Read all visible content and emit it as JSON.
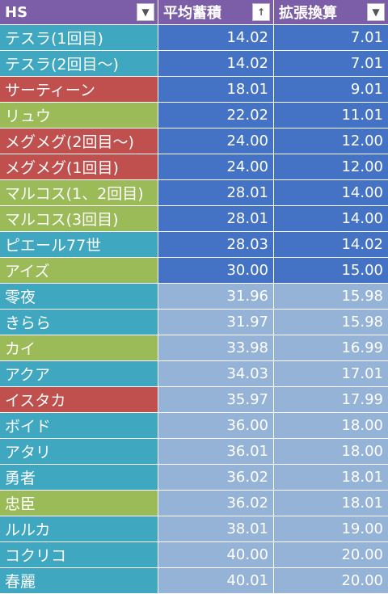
{
  "colors": {
    "header": "#7b5ea7",
    "name_blue": "#3fa7bf",
    "name_red": "#c0504d",
    "name_green": "#9bbb59",
    "value_dark": "#4472c4",
    "value_light": "#95b3d7"
  },
  "header": {
    "col1": "HS",
    "col2": "平均蓄積",
    "col3": "拡張換算",
    "col1_icon": "dropdown-arrow-icon",
    "col2_icon": "sort-ascending-icon",
    "col3_icon": "dropdown-arrow-icon"
  },
  "rows": [
    {
      "name": "テスラ(1回目)",
      "avg": "14.02",
      "ext": "7.01",
      "name_color": "blue",
      "value_shade": "dark"
    },
    {
      "name": "テスラ(2回目～)",
      "avg": "14.02",
      "ext": "7.01",
      "name_color": "blue",
      "value_shade": "dark"
    },
    {
      "name": "サーティーン",
      "avg": "18.01",
      "ext": "9.01",
      "name_color": "red",
      "value_shade": "dark"
    },
    {
      "name": "リュウ",
      "avg": "22.02",
      "ext": "11.01",
      "name_color": "green",
      "value_shade": "dark"
    },
    {
      "name": "メグメグ(2回目～)",
      "avg": "24.00",
      "ext": "12.00",
      "name_color": "red",
      "value_shade": "dark"
    },
    {
      "name": "メグメグ(1回目)",
      "avg": "24.00",
      "ext": "12.00",
      "name_color": "red",
      "value_shade": "dark"
    },
    {
      "name": "マルコス(1、2回目)",
      "avg": "28.01",
      "ext": "14.00",
      "name_color": "green",
      "value_shade": "dark"
    },
    {
      "name": "マルコス(3回目)",
      "avg": "28.01",
      "ext": "14.00",
      "name_color": "green",
      "value_shade": "dark"
    },
    {
      "name": "ピエール77世",
      "avg": "28.03",
      "ext": "14.02",
      "name_color": "blue",
      "value_shade": "dark"
    },
    {
      "name": "アイズ",
      "avg": "30.00",
      "ext": "15.00",
      "name_color": "green",
      "value_shade": "dark"
    },
    {
      "name": "零夜",
      "avg": "31.96",
      "ext": "15.98",
      "name_color": "blue",
      "value_shade": "light"
    },
    {
      "name": "きらら",
      "avg": "31.97",
      "ext": "15.98",
      "name_color": "blue",
      "value_shade": "light"
    },
    {
      "name": "カイ",
      "avg": "33.98",
      "ext": "16.99",
      "name_color": "green",
      "value_shade": "light"
    },
    {
      "name": "アクア",
      "avg": "34.03",
      "ext": "17.01",
      "name_color": "blue",
      "value_shade": "light"
    },
    {
      "name": "イスタカ",
      "avg": "35.97",
      "ext": "17.99",
      "name_color": "red",
      "value_shade": "light"
    },
    {
      "name": "ボイド",
      "avg": "36.00",
      "ext": "18.00",
      "name_color": "blue",
      "value_shade": "light"
    },
    {
      "name": "アタリ",
      "avg": "36.01",
      "ext": "18.00",
      "name_color": "blue",
      "value_shade": "light"
    },
    {
      "name": "勇者",
      "avg": "36.02",
      "ext": "18.01",
      "name_color": "blue",
      "value_shade": "light"
    },
    {
      "name": "忠臣",
      "avg": "36.02",
      "ext": "18.01",
      "name_color": "green",
      "value_shade": "light"
    },
    {
      "name": "ルルカ",
      "avg": "38.01",
      "ext": "19.00",
      "name_color": "blue",
      "value_shade": "light"
    },
    {
      "name": "コクリコ",
      "avg": "40.00",
      "ext": "20.00",
      "name_color": "blue",
      "value_shade": "light"
    },
    {
      "name": "春麗",
      "avg": "40.01",
      "ext": "20.00",
      "name_color": "blue",
      "value_shade": "light"
    }
  ]
}
